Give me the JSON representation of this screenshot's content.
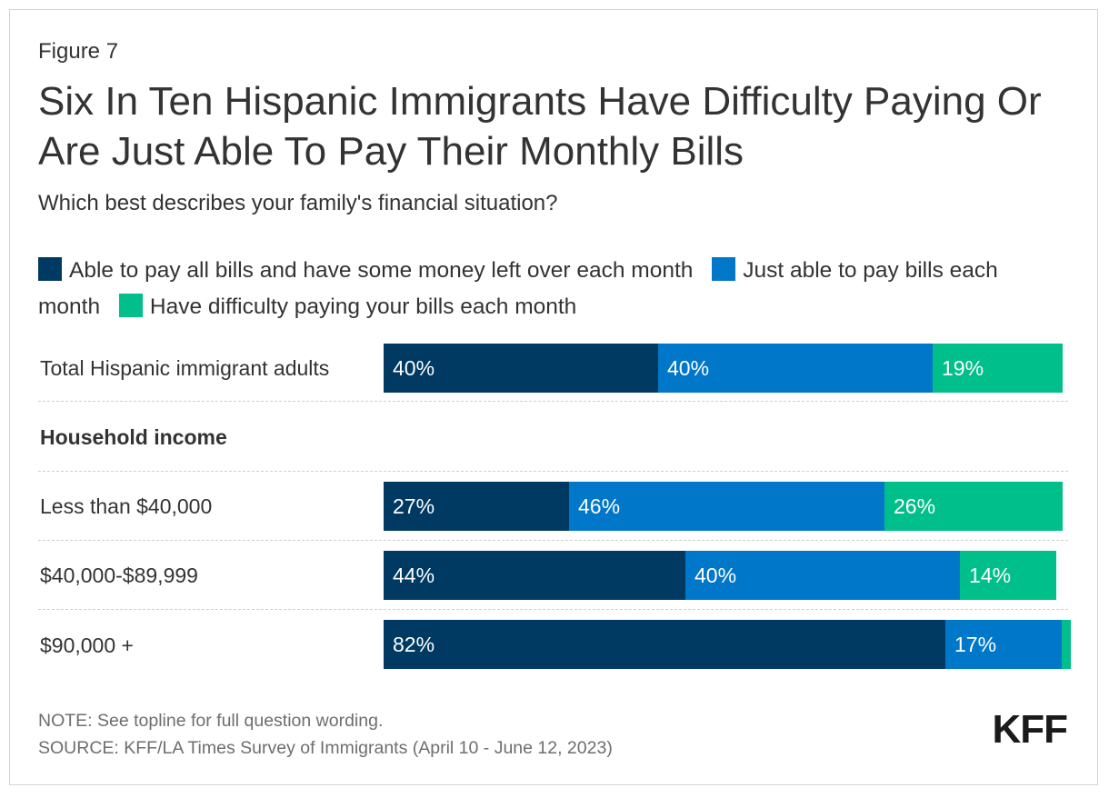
{
  "figure_label": "Figure 7",
  "title": "Six In Ten Hispanic Immigrants Have Difficulty Paying Or Are Just Able To Pay Their Monthly Bills",
  "subtitle": "Which best describes your family's financial situation?",
  "colors": {
    "able": "#003a63",
    "just": "#0077c8",
    "difficulty": "#00bf8a"
  },
  "chart_data": {
    "type": "bar",
    "orientation": "horizontal",
    "stacked": true,
    "categories": [
      "Total Hispanic immigrant adults",
      "Less than $40,000",
      "$40,000-$89,999",
      "$90,000 +"
    ],
    "group_heading": "Household income",
    "series": [
      {
        "name": "Able to pay all bills and have some money left over each month",
        "color": "#003a63",
        "values": [
          40,
          27,
          44,
          82
        ],
        "labels": [
          "40%",
          "27%",
          "44%",
          "82%"
        ]
      },
      {
        "name": "Just able to pay bills each month",
        "color": "#0077c8",
        "values": [
          40,
          46,
          40,
          17
        ],
        "labels": [
          "40%",
          "46%",
          "40%",
          "17%"
        ]
      },
      {
        "name": "Have difficulty paying your bills each month",
        "color": "#00bf8a",
        "values": [
          19,
          26,
          14,
          1
        ],
        "labels": [
          "19%",
          "26%",
          "14%",
          ""
        ]
      }
    ],
    "xlim": [
      0,
      100
    ],
    "legend_position": "top"
  },
  "footer": {
    "note": "NOTE: See topline for full question wording.",
    "source": "SOURCE: KFF/LA Times Survey of Immigrants (April 10 - June 12, 2023)",
    "logo": "KFF"
  }
}
